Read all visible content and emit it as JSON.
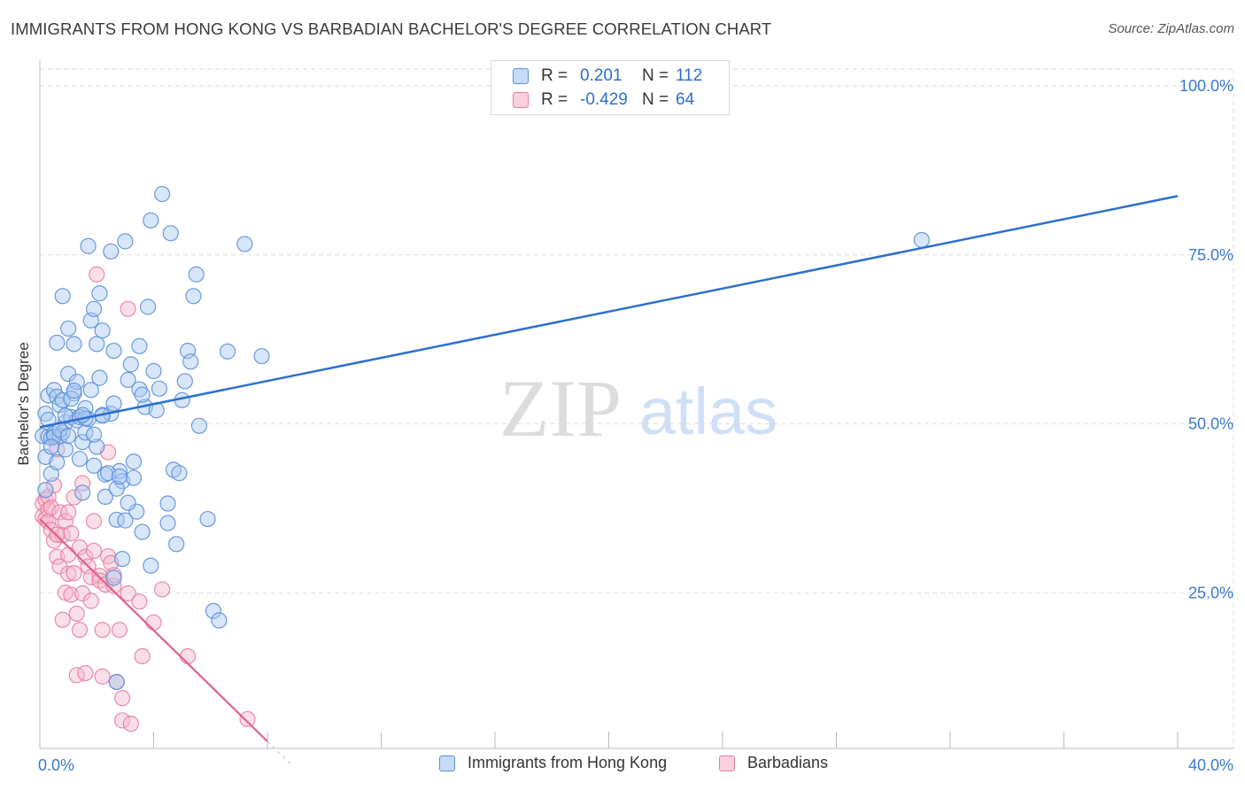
{
  "title": "IMMIGRANTS FROM HONG KONG VS BARBADIAN BACHELOR'S DEGREE CORRELATION CHART",
  "source": "Source: ZipAtlas.com",
  "watermark": {
    "zip": "ZIP",
    "atlas": "atlas"
  },
  "legend": {
    "rows": [
      {
        "r_label": "R =",
        "r_value": "0.201",
        "n_label": "N =",
        "n_value": "112"
      },
      {
        "r_label": "R =",
        "r_value": "-0.429",
        "n_label": "N =",
        "n_value": "64"
      }
    ]
  },
  "bottom_legend": [
    "Immigrants from Hong Kong",
    "Barbadians"
  ],
  "colors": {
    "blue_fill": "#a9c8f2",
    "blue_stroke": "#5b8fd6",
    "blue_line": "#2c6fce",
    "pink_fill": "#f7b8cc",
    "pink_stroke": "#e57ea0",
    "pink_line": "#e0608d",
    "axis_label": "#3a78cf"
  },
  "chart_data": {
    "type": "scatter",
    "title": "IMMIGRANTS FROM HONG KONG VS BARBADIAN BACHELOR'S DEGREE CORRELATION CHART",
    "xlabel": "",
    "ylabel": "Bachelor's Degree",
    "xlim": [
      0,
      40
    ],
    "ylim": [
      0,
      104
    ],
    "x_tick_labels": [
      "0.0%",
      "40.0%"
    ],
    "y_ticks": [
      25,
      50,
      75,
      100
    ],
    "y_tick_labels": [
      "25.0%",
      "50.0%",
      "75.0%",
      "100.0%"
    ],
    "grid": true,
    "series": [
      {
        "name": "Immigrants from Hong Kong",
        "color": "blue",
        "R": 0.201,
        "N": 112,
        "trend": {
          "x": [
            0,
            40
          ],
          "y": [
            49.5,
            83.7
          ]
        },
        "points": [
          [
            0.1,
            48.2
          ],
          [
            0.2,
            45.1
          ],
          [
            0.2,
            51.5
          ],
          [
            0.3,
            54.2
          ],
          [
            0.3,
            48.1
          ],
          [
            0.4,
            47.9
          ],
          [
            0.4,
            42.6
          ],
          [
            0.5,
            48.5
          ],
          [
            0.5,
            55.0
          ],
          [
            0.6,
            54.0
          ],
          [
            0.6,
            62.0
          ],
          [
            0.6,
            44.3
          ],
          [
            0.7,
            52.8
          ],
          [
            0.7,
            48.1
          ],
          [
            0.8,
            53.5
          ],
          [
            0.8,
            68.9
          ],
          [
            0.9,
            50.2
          ],
          [
            0.9,
            46.2
          ],
          [
            1.0,
            57.4
          ],
          [
            1.0,
            64.1
          ],
          [
            1.1,
            51.0
          ],
          [
            1.2,
            61.8
          ],
          [
            1.2,
            54.5
          ],
          [
            1.3,
            56.2
          ],
          [
            1.3,
            50.5
          ],
          [
            1.4,
            44.8
          ],
          [
            1.5,
            47.3
          ],
          [
            1.5,
            39.8
          ],
          [
            1.6,
            52.3
          ],
          [
            1.6,
            48.7
          ],
          [
            1.7,
            76.3
          ],
          [
            1.8,
            65.3
          ],
          [
            1.8,
            55.0
          ],
          [
            1.9,
            43.8
          ],
          [
            1.9,
            67.0
          ],
          [
            2.0,
            61.8
          ],
          [
            2.1,
            56.8
          ],
          [
            2.2,
            63.8
          ],
          [
            2.1,
            69.3
          ],
          [
            2.2,
            51.3
          ],
          [
            2.3,
            39.2
          ],
          [
            2.3,
            42.5
          ],
          [
            2.5,
            75.5
          ],
          [
            2.5,
            51.5
          ],
          [
            2.6,
            53.0
          ],
          [
            2.6,
            60.8
          ],
          [
            2.7,
            35.8
          ],
          [
            2.8,
            43.0
          ],
          [
            2.9,
            41.5
          ],
          [
            2.9,
            30.0
          ],
          [
            3.0,
            77.0
          ],
          [
            3.1,
            56.5
          ],
          [
            3.2,
            58.8
          ],
          [
            3.3,
            42.0
          ],
          [
            3.4,
            37.0
          ],
          [
            3.5,
            55.1
          ],
          [
            3.5,
            61.5
          ],
          [
            3.6,
            34.0
          ],
          [
            3.7,
            52.5
          ],
          [
            3.8,
            67.3
          ],
          [
            3.9,
            29.0
          ],
          [
            3.9,
            80.1
          ],
          [
            4.0,
            57.8
          ],
          [
            4.1,
            52.0
          ],
          [
            4.2,
            55.2
          ],
          [
            4.3,
            84.0
          ],
          [
            4.5,
            38.2
          ],
          [
            4.6,
            78.2
          ],
          [
            4.7,
            43.2
          ],
          [
            4.8,
            32.2
          ],
          [
            5.0,
            53.5
          ],
          [
            5.1,
            56.3
          ],
          [
            5.2,
            60.8
          ],
          [
            5.4,
            68.9
          ],
          [
            5.5,
            72.1
          ],
          [
            5.6,
            49.7
          ],
          [
            5.9,
            35.9
          ],
          [
            6.1,
            22.3
          ],
          [
            6.3,
            20.9
          ],
          [
            6.6,
            60.7
          ],
          [
            7.2,
            76.6
          ],
          [
            7.8,
            60.0
          ],
          [
            2.7,
            11.8
          ],
          [
            31.0,
            77.2
          ],
          [
            0.8,
            48.7
          ],
          [
            1.1,
            53.7
          ],
          [
            1.4,
            51.0
          ],
          [
            1.7,
            50.7
          ],
          [
            2.0,
            46.6
          ],
          [
            2.4,
            42.7
          ],
          [
            2.7,
            40.4
          ],
          [
            3.0,
            35.7
          ],
          [
            3.3,
            44.4
          ],
          [
            0.5,
            48.1
          ],
          [
            0.9,
            51.2
          ],
          [
            1.2,
            54.9
          ],
          [
            1.6,
            50.8
          ],
          [
            2.2,
            51.2
          ],
          [
            2.8,
            42.2
          ],
          [
            3.1,
            38.3
          ],
          [
            0.3,
            50.6
          ],
          [
            0.4,
            46.6
          ],
          [
            0.7,
            49.1
          ],
          [
            1.5,
            51.3
          ],
          [
            3.6,
            54.3
          ],
          [
            4.9,
            42.7
          ],
          [
            5.3,
            59.2
          ],
          [
            1.9,
            48.4
          ],
          [
            2.6,
            27.2
          ],
          [
            4.5,
            35.3
          ],
          [
            0.2,
            40.2
          ],
          [
            1.0,
            48.2
          ]
        ]
      },
      {
        "name": "Barbadians",
        "color": "pink",
        "R": -0.429,
        "N": 64,
        "trend": {
          "x": [
            0,
            8
          ],
          "y": [
            35.9,
            3.0
          ]
        },
        "points": [
          [
            0.1,
            38.2
          ],
          [
            0.1,
            36.3
          ],
          [
            0.2,
            38.8
          ],
          [
            0.2,
            35.9
          ],
          [
            0.3,
            39.2
          ],
          [
            0.3,
            37.3
          ],
          [
            0.3,
            35.5
          ],
          [
            0.4,
            37.6
          ],
          [
            0.4,
            34.3
          ],
          [
            0.5,
            40.9
          ],
          [
            0.5,
            32.7
          ],
          [
            0.6,
            46.2
          ],
          [
            0.6,
            30.3
          ],
          [
            0.7,
            36.9
          ],
          [
            0.7,
            28.9
          ],
          [
            0.8,
            33.5
          ],
          [
            0.8,
            21.0
          ],
          [
            0.9,
            35.6
          ],
          [
            0.9,
            25.0
          ],
          [
            1.0,
            30.6
          ],
          [
            1.0,
            27.8
          ],
          [
            1.1,
            33.8
          ],
          [
            1.1,
            24.7
          ],
          [
            1.2,
            39.1
          ],
          [
            1.2,
            27.9
          ],
          [
            1.3,
            21.9
          ],
          [
            1.3,
            12.8
          ],
          [
            1.4,
            31.7
          ],
          [
            1.4,
            19.5
          ],
          [
            1.5,
            41.2
          ],
          [
            1.5,
            24.9
          ],
          [
            1.6,
            30.3
          ],
          [
            1.6,
            13.1
          ],
          [
            1.7,
            28.9
          ],
          [
            1.8,
            27.3
          ],
          [
            1.8,
            23.8
          ],
          [
            1.9,
            31.2
          ],
          [
            1.9,
            35.6
          ],
          [
            2.0,
            72.1
          ],
          [
            2.1,
            27.5
          ],
          [
            2.1,
            26.8
          ],
          [
            2.2,
            19.5
          ],
          [
            2.2,
            12.6
          ],
          [
            2.3,
            26.2
          ],
          [
            2.4,
            45.8
          ],
          [
            2.4,
            30.4
          ],
          [
            2.5,
            29.4
          ],
          [
            2.6,
            26.0
          ],
          [
            2.6,
            27.6
          ],
          [
            2.7,
            11.8
          ],
          [
            2.8,
            19.5
          ],
          [
            2.9,
            9.4
          ],
          [
            2.9,
            6.1
          ],
          [
            3.1,
            24.9
          ],
          [
            3.1,
            67.0
          ],
          [
            3.2,
            5.6
          ],
          [
            3.5,
            23.7
          ],
          [
            3.6,
            15.6
          ],
          [
            4.0,
            20.6
          ],
          [
            4.3,
            25.5
          ],
          [
            5.2,
            15.6
          ],
          [
            7.3,
            6.3
          ],
          [
            1.0,
            36.9
          ],
          [
            0.6,
            33.6
          ]
        ]
      }
    ]
  }
}
